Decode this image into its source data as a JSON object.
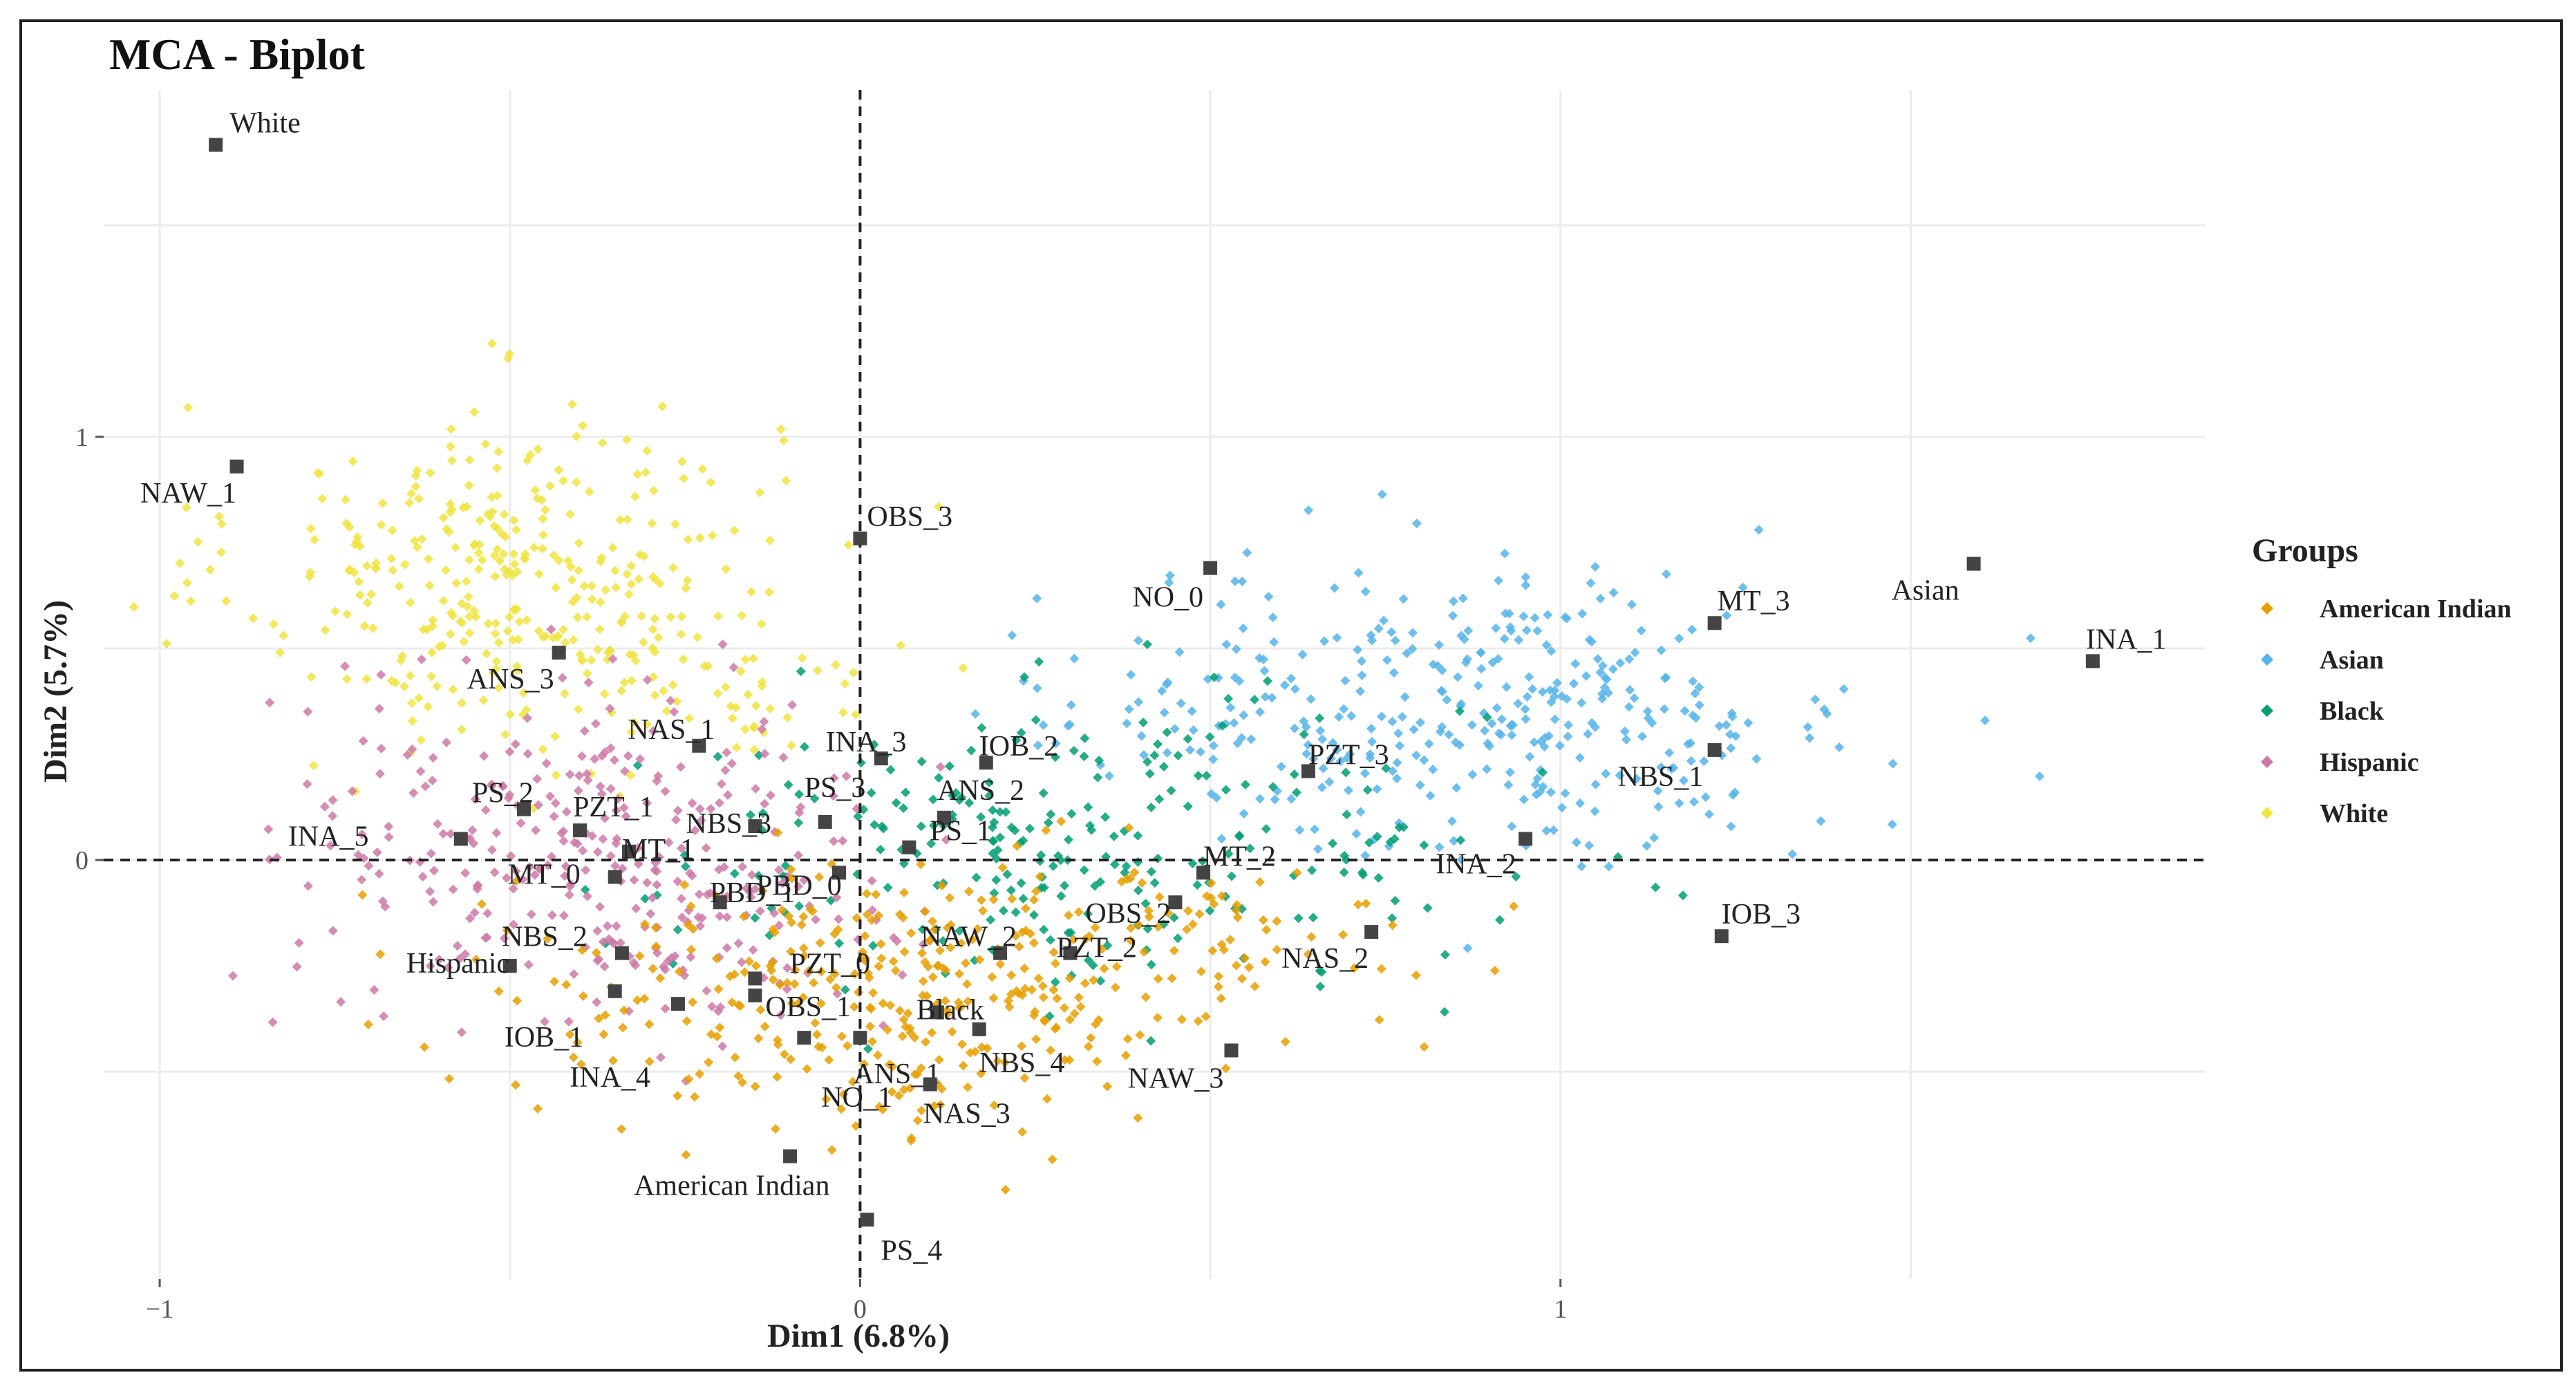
{
  "chart_data": {
    "type": "scatter",
    "title": "MCA - Biplot",
    "xlabel": "Dim1 (6.8%)",
    "ylabel": "Dim2 (5.7%)",
    "xlim": [
      -1.08,
      1.92
    ],
    "ylim": [
      -0.99,
      1.82
    ],
    "x_ticks": [
      -1,
      0,
      1
    ],
    "y_ticks": [
      0,
      1
    ],
    "reference_lines": {
      "x": 0,
      "y": 0
    },
    "legend": {
      "title": "Groups",
      "position": "right",
      "entries": [
        {
          "name": "American Indian",
          "color": "#E69F00"
        },
        {
          "name": "Asian",
          "color": "#56B4E9"
        },
        {
          "name": "Black",
          "color": "#009E73"
        },
        {
          "name": "Hispanic",
          "color": "#CC79A7"
        },
        {
          "name": "White",
          "color": "#F0E442"
        }
      ]
    },
    "individual_clouds": [
      {
        "group": "White",
        "color": "#F0E442",
        "center": [
          -0.5,
          0.68
        ],
        "spread": [
          0.19,
          0.2
        ],
        "count": 320
      },
      {
        "group": "White",
        "color": "#F0E442",
        "center": [
          -0.25,
          0.42
        ],
        "spread": [
          0.14,
          0.12
        ],
        "count": 60
      },
      {
        "group": "Asian",
        "color": "#56B4E9",
        "center": [
          0.92,
          0.35
        ],
        "spread": [
          0.26,
          0.17
        ],
        "count": 340
      },
      {
        "group": "Asian",
        "color": "#56B4E9",
        "center": [
          0.45,
          0.36
        ],
        "spread": [
          0.12,
          0.1
        ],
        "count": 40
      },
      {
        "group": "Black",
        "color": "#009E73",
        "center": [
          0.3,
          0.03
        ],
        "spread": [
          0.3,
          0.17
        ],
        "count": 260
      },
      {
        "group": "Hispanic",
        "color": "#CC79A7",
        "center": [
          -0.4,
          0.05
        ],
        "spread": [
          0.2,
          0.19
        ],
        "count": 280
      },
      {
        "group": "Hispanic",
        "color": "#CC79A7",
        "center": [
          -0.18,
          -0.22
        ],
        "spread": [
          0.14,
          0.1
        ],
        "count": 60
      },
      {
        "group": "American Indian",
        "color": "#E69F00",
        "center": [
          0.05,
          -0.32
        ],
        "spread": [
          0.28,
          0.15
        ],
        "count": 360
      },
      {
        "group": "American Indian",
        "color": "#E69F00",
        "center": [
          0.45,
          -0.15
        ],
        "spread": [
          0.15,
          0.12
        ],
        "count": 50
      }
    ],
    "variable_points": [
      {
        "label": "White",
        "x": -0.92,
        "y": 1.69
      },
      {
        "label": "NAW_1",
        "x": -0.89,
        "y": 0.93
      },
      {
        "label": "OBS_3",
        "x": 0.0,
        "y": 0.76
      },
      {
        "label": "NO_0",
        "x": 0.5,
        "y": 0.69
      },
      {
        "label": "Asian",
        "x": 1.59,
        "y": 0.7
      },
      {
        "label": "MT_3",
        "x": 1.22,
        "y": 0.56
      },
      {
        "label": "INA_1",
        "x": 1.76,
        "y": 0.47
      },
      {
        "label": "ANS_3",
        "x": -0.43,
        "y": 0.49
      },
      {
        "label": "NAS_1",
        "x": -0.23,
        "y": 0.27
      },
      {
        "label": "INA_3",
        "x": 0.03,
        "y": 0.24
      },
      {
        "label": "IOB_2",
        "x": 0.18,
        "y": 0.23
      },
      {
        "label": "PZT_3",
        "x": 0.64,
        "y": 0.21
      },
      {
        "label": "NBS_1",
        "x": 1.22,
        "y": 0.26
      },
      {
        "label": "PS_2",
        "x": -0.48,
        "y": 0.12
      },
      {
        "label": "PS_3",
        "x": -0.05,
        "y": 0.09
      },
      {
        "label": "ANS_2",
        "x": 0.12,
        "y": 0.1
      },
      {
        "label": "PZT_1",
        "x": -0.4,
        "y": 0.07
      },
      {
        "label": "NBS_3",
        "x": -0.15,
        "y": 0.08
      },
      {
        "label": "INA_5",
        "x": -0.57,
        "y": 0.05
      },
      {
        "label": "MT_1",
        "x": -0.33,
        "y": 0.02
      },
      {
        "label": "PS_1",
        "x": 0.07,
        "y": 0.03
      },
      {
        "label": "MT_0",
        "x": -0.35,
        "y": -0.04
      },
      {
        "label": "PBD_0",
        "x": -0.03,
        "y": -0.03
      },
      {
        "label": "MT_2",
        "x": 0.49,
        "y": -0.03
      },
      {
        "label": "INA_2",
        "x": 0.95,
        "y": 0.05
      },
      {
        "label": "OBS_2",
        "x": 0.45,
        "y": -0.1
      },
      {
        "label": "NBS_2",
        "x": -0.34,
        "y": -0.22
      },
      {
        "label": "PBD_1",
        "x": -0.2,
        "y": -0.1
      },
      {
        "label": "NAW_2",
        "x": 0.2,
        "y": -0.22
      },
      {
        "label": "PZT_2",
        "x": 0.3,
        "y": -0.22
      },
      {
        "label": "NAS_2",
        "x": 0.73,
        "y": -0.17
      },
      {
        "label": "IOB_3",
        "x": 1.23,
        "y": -0.18
      },
      {
        "label": "Hispanic",
        "x": -0.5,
        "y": -0.25
      },
      {
        "label": "PZT_0",
        "x": -0.15,
        "y": -0.28
      },
      {
        "label": "Black",
        "x": 0.11,
        "y": -0.36
      },
      {
        "label": "IOB_1",
        "x": -0.35,
        "y": -0.31
      },
      {
        "label": "OBS_1",
        "x": -0.15,
        "y": -0.32
      },
      {
        "label": "INA_4",
        "x": -0.26,
        "y": -0.34
      },
      {
        "label": "NO_1",
        "x": -0.08,
        "y": -0.42
      },
      {
        "label": "ANS_1",
        "x": 0.0,
        "y": -0.42
      },
      {
        "label": "NBS_4",
        "x": 0.17,
        "y": -0.4
      },
      {
        "label": "NAW_3",
        "x": 0.53,
        "y": -0.45
      },
      {
        "label": "NAS_3",
        "x": 0.1,
        "y": -0.53
      },
      {
        "label": "American Indian",
        "x": -0.1,
        "y": -0.7
      },
      {
        "label": "PS_4",
        "x": 0.01,
        "y": -0.85
      }
    ]
  }
}
